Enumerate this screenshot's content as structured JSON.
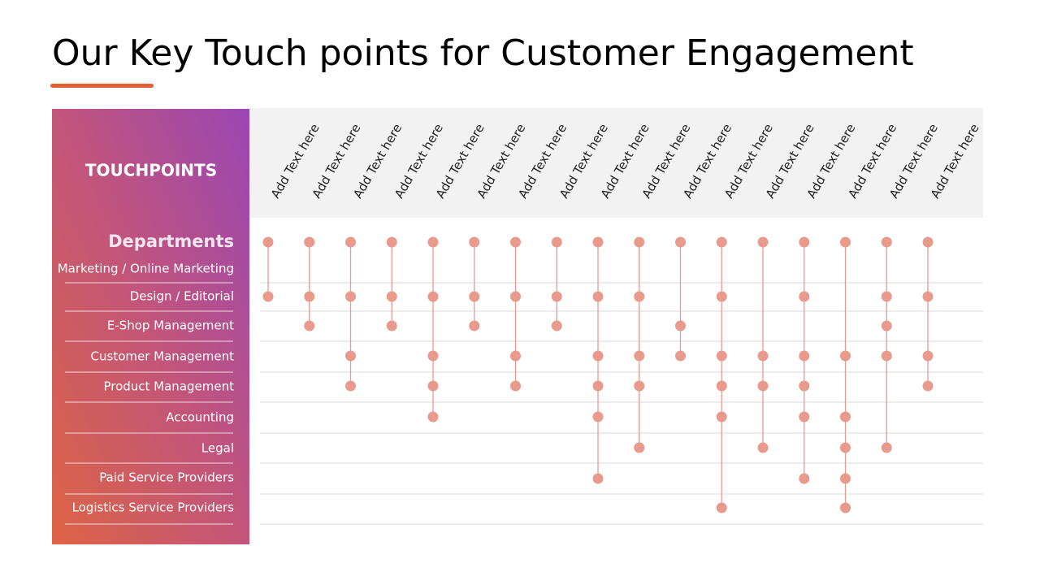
{
  "title": "Our Key Touch points for Customer Engagement",
  "panel": {
    "header": "TOUCHPOINTS",
    "subheader": "Departments"
  },
  "departments": [
    "Marketing / Online Marketing",
    "Design / Editorial",
    "E-Shop Management",
    "Customer Management",
    "Product Management",
    "Accounting",
    "Legal",
    "Paid Service Providers",
    "Logistics Service Providers"
  ],
  "columns": [
    {
      "label": "Add Text here",
      "dots": [
        0,
        1
      ]
    },
    {
      "label": "Add Text here",
      "dots": [
        0,
        1,
        2
      ]
    },
    {
      "label": "Add Text here",
      "dots": [
        0,
        1,
        3,
        4
      ]
    },
    {
      "label": "Add Text here",
      "dots": [
        0,
        1,
        2
      ]
    },
    {
      "label": "Add Text here",
      "dots": [
        0,
        1,
        3,
        4,
        5
      ]
    },
    {
      "label": "Add Text here",
      "dots": [
        0,
        1,
        2
      ]
    },
    {
      "label": "Add Text here",
      "dots": [
        0,
        1,
        3,
        4
      ]
    },
    {
      "label": "Add Text here",
      "dots": [
        0,
        1,
        2
      ]
    },
    {
      "label": "Add Text here",
      "dots": [
        0,
        1,
        3,
        4,
        5,
        7
      ]
    },
    {
      "label": "Add Text here",
      "dots": [
        0,
        1,
        3,
        4,
        6
      ]
    },
    {
      "label": "Add Text here",
      "dots": [
        0,
        2,
        3
      ]
    },
    {
      "label": "Add Text here",
      "dots": [
        0,
        1,
        3,
        4,
        5,
        8
      ]
    },
    {
      "label": "Add Text here",
      "dots": [
        0,
        3,
        4,
        6
      ]
    },
    {
      "label": "Add Text here",
      "dots": [
        0,
        1,
        3,
        4,
        5,
        7
      ]
    },
    {
      "label": "Add Text here",
      "dots": [
        0,
        3,
        5,
        6,
        7,
        8
      ]
    },
    {
      "label": "Add Text here",
      "dots": [
        0,
        1,
        2,
        3,
        6
      ]
    },
    {
      "label": "Add Text here",
      "dots": [
        0,
        1,
        3,
        4
      ]
    }
  ]
}
